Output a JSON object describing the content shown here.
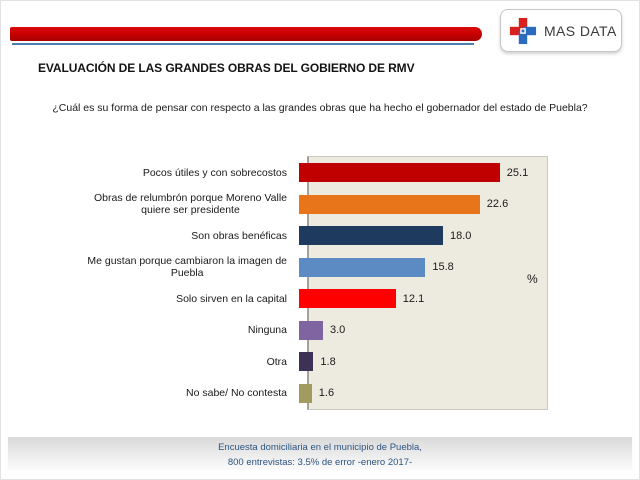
{
  "slide": {
    "title": "EVALUACIÓN DE LAS GRANDES OBRAS DEL GOBIERNO DE RMV",
    "question": "¿Cuál es su forma de pensar con respecto a las grandes obras que ha hecho el gobernador del estado de Puebla?",
    "footer": [
      "Encuesta domiciliaria en el municipio de Puebla,",
      "800 entrevistas: 3.5% de error -enero 2017-"
    ]
  },
  "logo": {
    "text": "MAS DATA",
    "icon": "medical-cross-icon",
    "icon_colors": {
      "red": "#d8201f",
      "blue": "#2b6bbf"
    }
  },
  "banner": {
    "bar_color": "#c40000",
    "underline_color": "#4e81ae"
  },
  "chart_data": {
    "type": "bar",
    "orientation": "horizontal",
    "title": "",
    "xlabel": "",
    "ylabel": "",
    "unit_label": "%",
    "xlim": [
      0,
      30
    ],
    "grid": false,
    "legend": false,
    "plot_background": "#edebe0",
    "categories": [
      "Pocos útiles y con sobrecostos",
      "Obras de relumbrón porque Moreno Valle\nquiere ser presidente",
      "Son obras benéficas",
      "Me gustan porque cambiaron la imagen de\nPuebla",
      "Solo sirven en la capital",
      "Ninguna",
      "Otra",
      "No sabe/ No contesta"
    ],
    "values": [
      25.1,
      22.6,
      18.0,
      15.8,
      12.1,
      3.0,
      1.8,
      1.6
    ],
    "bar_colors": [
      "#c00000",
      "#e8751a",
      "#1e3a5f",
      "#5c8bc4",
      "#fe0000",
      "#8064a2",
      "#3e3156",
      "#a29b5f"
    ]
  }
}
